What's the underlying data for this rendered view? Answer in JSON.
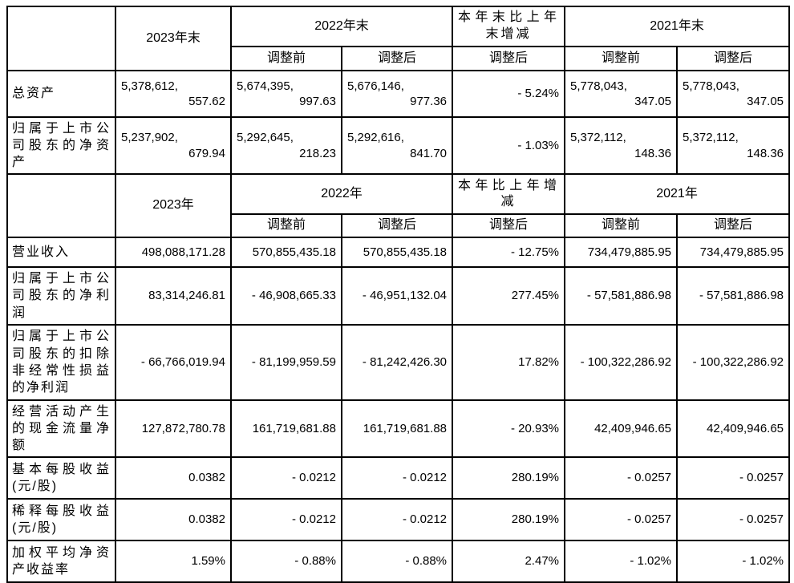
{
  "page": {
    "background": "#ffffff",
    "border_color": "#000000",
    "text_color": "#000000"
  },
  "table": {
    "sections": [
      {
        "period_headers": {
          "current": "2023年末",
          "prior": "2022年末",
          "change": "本年末比上年末增减",
          "prior2": "2021年末"
        },
        "adjust_headers": {
          "prior_pre": "调整前",
          "prior_post": "调整后",
          "change_post": "调整后",
          "prior2_pre": "调整前",
          "prior2_post": "调整后"
        },
        "rows": [
          {
            "label": "总资产",
            "values": [
              "5,378,612,\n557.62",
              "5,674,395,\n997.63",
              "5,676,146,\n977.36",
              "- 5.24%",
              "5,778,043,\n347.05",
              "5,778,043,\n347.05"
            ]
          },
          {
            "label": "归属于上市公司股东的净资产",
            "values": [
              "5,237,902,\n679.94",
              "5,292,645,\n218.23",
              "5,292,616,\n841.70",
              "- 1.03%",
              "5,372,112,\n148.36",
              "5,372,112,\n148.36"
            ]
          }
        ]
      },
      {
        "period_headers": {
          "current": "2023年",
          "prior": "2022年",
          "change": "本年比上年增减",
          "prior2": "2021年"
        },
        "adjust_headers": {
          "prior_pre": "调整前",
          "prior_post": "调整后",
          "change_post": "调整后",
          "prior2_pre": "调整前",
          "prior2_post": "调整后"
        },
        "rows": [
          {
            "label": "营业收入",
            "values": [
              "498,088,171.28",
              "570,855,435.18",
              "570,855,435.18",
              "- 12.75%",
              "734,479,885.95",
              "734,479,885.95"
            ]
          },
          {
            "label": "归属于上市公司股东的净利润",
            "values": [
              "83,314,246.81",
              "- 46,908,665.33",
              "- 46,951,132.04",
              "277.45%",
              "- 57,581,886.98",
              "- 57,581,886.98"
            ]
          },
          {
            "label": "归属于上市公司股东的扣除非经常性损益的净利润",
            "values": [
              "- 66,766,019.94",
              "- 81,199,959.59",
              "- 81,242,426.30",
              "17.82%",
              "- 100,322,286.92",
              "- 100,322,286.92"
            ]
          },
          {
            "label": "经营活动产生的现金流量净额",
            "values": [
              "127,872,780.78",
              "161,719,681.88",
              "161,719,681.88",
              "- 20.93%",
              "42,409,946.65",
              "42,409,946.65"
            ]
          },
          {
            "label": "基本每股收益(元/股)",
            "values": [
              "0.0382",
              "- 0.0212",
              "- 0.0212",
              "280.19%",
              "- 0.0257",
              "- 0.0257"
            ]
          },
          {
            "label": "稀释每股收益(元/股)",
            "values": [
              "0.0382",
              "- 0.0212",
              "- 0.0212",
              "280.19%",
              "- 0.0257",
              "- 0.0257"
            ]
          },
          {
            "label": "加权平均净资产收益率",
            "values": [
              "1.59%",
              "- 0.88%",
              "- 0.88%",
              "2.47%",
              "- 1.02%",
              "- 1.02%"
            ]
          }
        ]
      }
    ]
  }
}
